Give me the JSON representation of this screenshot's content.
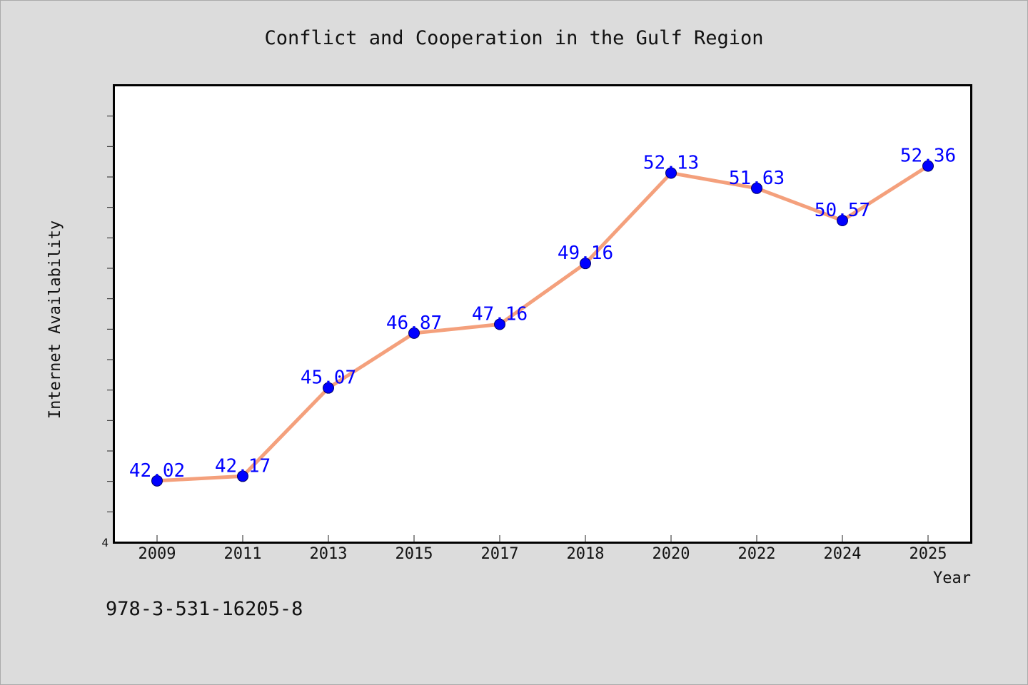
{
  "chart_data": {
    "type": "line",
    "title": "Conflict and Cooperation in the Gulf Region",
    "xlabel": "Year",
    "ylabel": "Internet Availability",
    "categories": [
      "2009",
      "2011",
      "2013",
      "2015",
      "2017",
      "2018",
      "2020",
      "2022",
      "2024",
      "2025"
    ],
    "series": [
      {
        "values": [
          42.02,
          42.17,
          45.07,
          46.87,
          47.16,
          49.16,
          52.13,
          51.63,
          50.57,
          52.36
        ],
        "labels": [
          "42.02",
          "42.17",
          "45.07",
          "46.87",
          "47.16",
          "49.16",
          "52.13",
          "51.63",
          "50.57",
          "52.36"
        ]
      }
    ],
    "ylim": [
      40,
      55
    ],
    "ytick_labels": [
      "4"
    ],
    "grid": false,
    "line_color": "#f4a07c",
    "marker_color": "#0000ff",
    "label_color": "#0000ff"
  },
  "footer": {
    "isbn": "978-3-531-16205-8"
  }
}
